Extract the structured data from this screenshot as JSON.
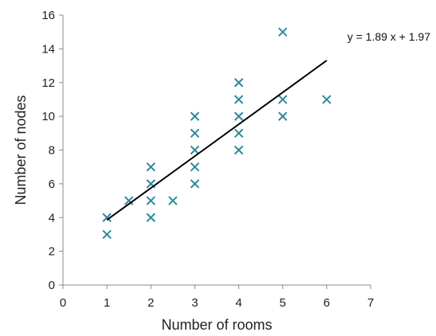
{
  "chart_data": {
    "type": "scatter",
    "xlabel": "Number of rooms",
    "ylabel": "Number of nodes",
    "xlim": [
      0,
      7
    ],
    "ylim": [
      0,
      16
    ],
    "x_ticks": [
      0,
      1,
      2,
      3,
      4,
      5,
      6,
      7
    ],
    "y_ticks": [
      0,
      2,
      4,
      6,
      8,
      10,
      12,
      14,
      16
    ],
    "grid": false,
    "marker": "x",
    "marker_color": "#2e8a9a",
    "trendline": {
      "slope": 1.89,
      "intercept": 1.97,
      "x_range": [
        1,
        6
      ],
      "label": "y = 1.89 x + 1.97",
      "color": "#000000"
    },
    "points": [
      {
        "x": 1,
        "y": 4
      },
      {
        "x": 1,
        "y": 3
      },
      {
        "x": 1.5,
        "y": 5
      },
      {
        "x": 2,
        "y": 7
      },
      {
        "x": 2,
        "y": 6
      },
      {
        "x": 2,
        "y": 5
      },
      {
        "x": 2,
        "y": 4
      },
      {
        "x": 2.5,
        "y": 5
      },
      {
        "x": 3,
        "y": 10
      },
      {
        "x": 3,
        "y": 9
      },
      {
        "x": 3,
        "y": 8
      },
      {
        "x": 3,
        "y": 7
      },
      {
        "x": 3,
        "y": 6
      },
      {
        "x": 4,
        "y": 12
      },
      {
        "x": 4,
        "y": 11
      },
      {
        "x": 4,
        "y": 10
      },
      {
        "x": 4,
        "y": 9
      },
      {
        "x": 4,
        "y": 8
      },
      {
        "x": 5,
        "y": 15
      },
      {
        "x": 5,
        "y": 11
      },
      {
        "x": 5,
        "y": 10
      },
      {
        "x": 6,
        "y": 11
      }
    ]
  }
}
